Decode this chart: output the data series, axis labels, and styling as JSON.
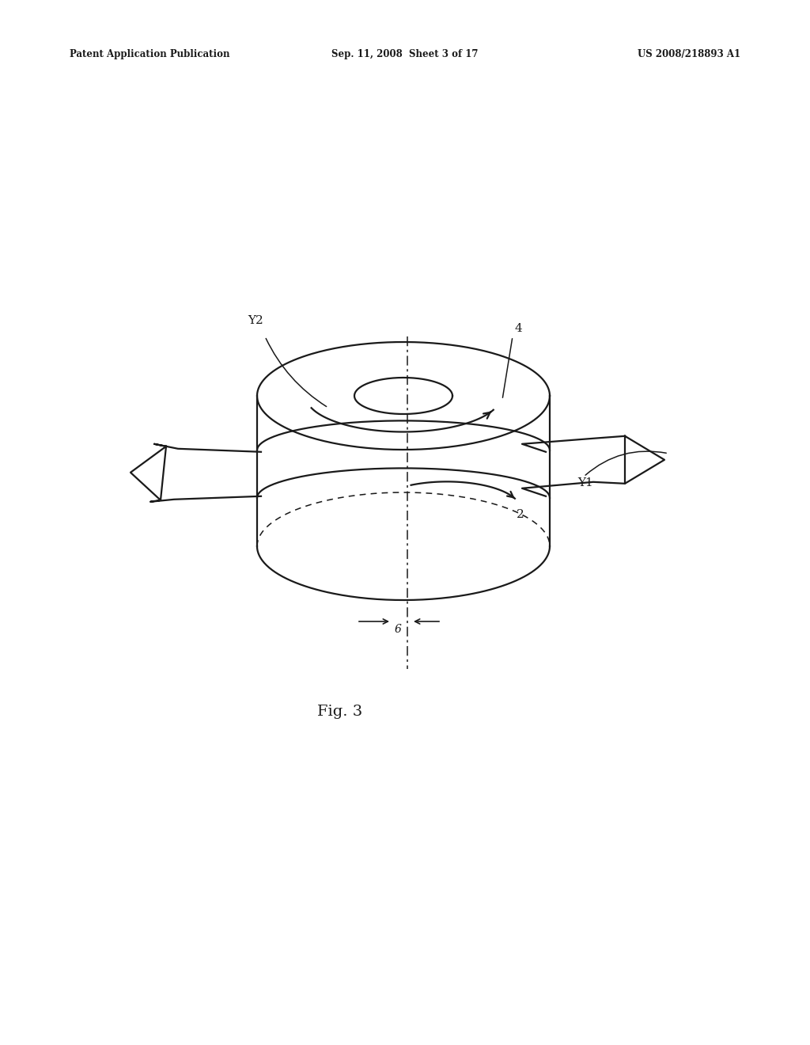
{
  "background_color": "#ffffff",
  "header_left": "Patent Application Publication",
  "header_center": "Sep. 11, 2008  Sheet 3 of 17",
  "header_right": "US 2008/218893 A1",
  "figure_label": "Fig. 3"
}
